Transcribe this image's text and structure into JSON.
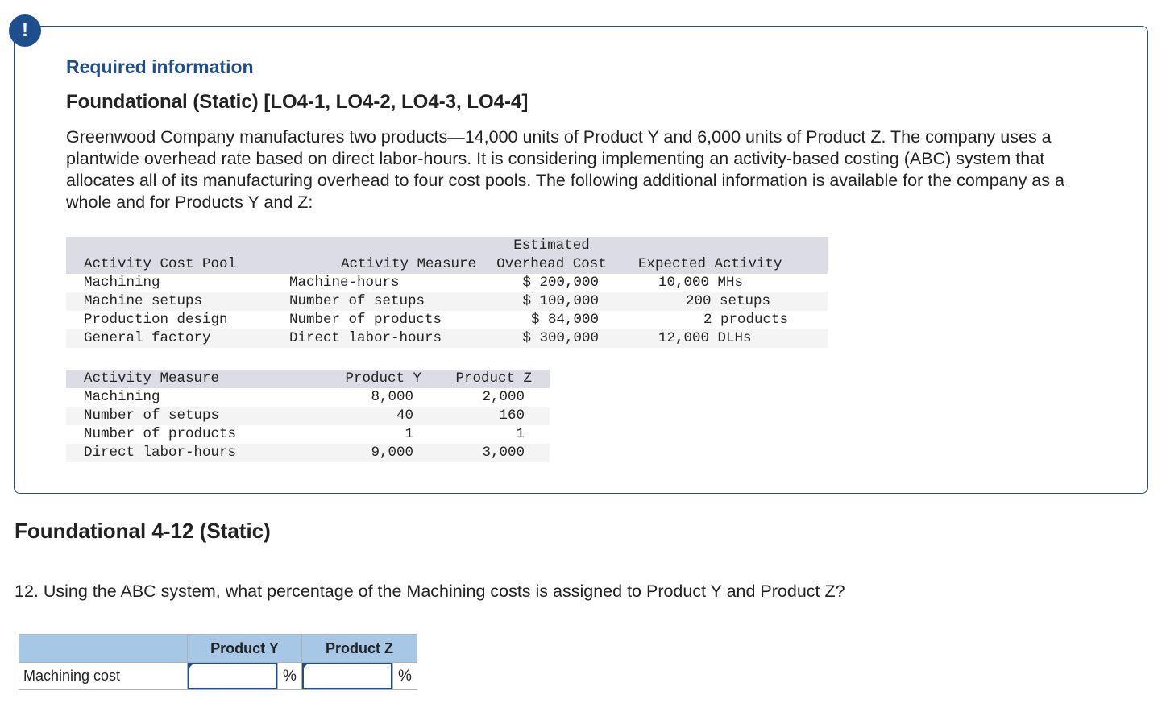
{
  "badge": "!",
  "required_info": "Required information",
  "foundational_title": "Foundational (Static) [LO4-1, LO4-2, LO4-3, LO4-4]",
  "description": "Greenwood Company manufactures two products—14,000 units of Product Y and 6,000 units of Product Z. The company uses a plantwide overhead rate based on direct labor-hours. It is considering implementing an activity-based costing (ABC) system that allocates all of its manufacturing overhead to four cost pools. The following additional information is available for the company as a whole and for Products Y and Z:",
  "table1": {
    "headers": {
      "pool": "Activity Cost Pool",
      "measure": "Activity Measure",
      "cost_line1": "Estimated",
      "cost_line2": "Overhead Cost",
      "expected": "Expected Activity"
    },
    "rows": [
      {
        "pool": "Machining",
        "measure": "Machine-hours",
        "cost": "$ 200,000",
        "expected": "10,000 MHs"
      },
      {
        "pool": "Machine setups",
        "measure": "Number of setups",
        "cost": "$ 100,000",
        "expected": "200 setups"
      },
      {
        "pool": "Production design",
        "measure": "Number of products",
        "cost": "$ 84,000",
        "expected": "2 products"
      },
      {
        "pool": "General factory",
        "measure": "Direct labor-hours",
        "cost": "$ 300,000",
        "expected": "12,000 DLHs"
      }
    ]
  },
  "table2": {
    "headers": {
      "measure": "Activity Measure",
      "y": "Product Y",
      "z": "Product Z"
    },
    "rows": [
      {
        "measure": "Machining",
        "y": "8,000",
        "z": "2,000"
      },
      {
        "measure": "Number of setups",
        "y": "40",
        "z": "160"
      },
      {
        "measure": "Number of products",
        "y": "1",
        "z": "1"
      },
      {
        "measure": "Direct labor-hours",
        "y": "9,000",
        "z": "3,000"
      }
    ]
  },
  "section_title": "Foundational 4-12 (Static)",
  "question": "12. Using the ABC system, what percentage of the Machining costs is assigned to Product Y and Product Z?",
  "answer_table": {
    "col_y": "Product Y",
    "col_z": "Product Z",
    "row_label": "Machining cost",
    "unit": "%",
    "value_y": "",
    "value_z": ""
  }
}
